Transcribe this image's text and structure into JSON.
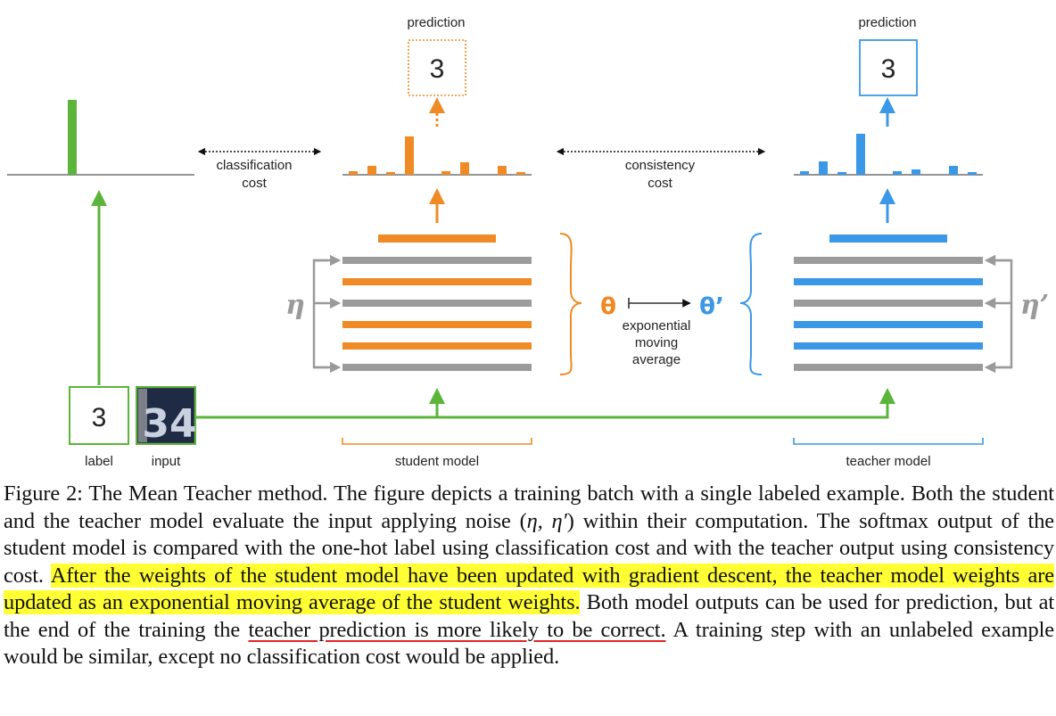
{
  "figure": {
    "prediction_label": "prediction",
    "student_prediction_digit": "3",
    "teacher_prediction_digit": "3",
    "classification_cost": [
      "classification",
      "cost"
    ],
    "consistency_cost": [
      "consistency",
      "cost"
    ],
    "label_digit": "3",
    "label_caption": "label",
    "input_caption": "input",
    "input_image_digits": "34",
    "student_model_label": "student model",
    "teacher_model_label": "teacher model",
    "eta": "η",
    "eta_prime": "η’",
    "theta": "θ",
    "theta_prime": "θ’",
    "ema_label": [
      "exponential",
      "moving",
      "average"
    ],
    "colors": {
      "student": "#f08a24",
      "teacher": "#3b98e6",
      "label": "#5bb53a",
      "noise": "#9a9a9a",
      "layer_gray": "#9b9b9b"
    }
  },
  "caption": {
    "prefix": "Figure 2: The Mean Teacher method. The figure depicts a training batch with a single labeled example. Both the student and the teacher model evaluate the input applying noise (",
    "math": "η, η′",
    "part2": ") within their computation. The softmax output of the student model is compared with the one-hot label using classification cost and with the teacher output using consistency cost. ",
    "highlight": "After the weights of the student model have been updated with gradient descent, the teacher model weights are updated as an exponential moving average of the student weights.",
    "part3": " Both model outputs can be used for prediction, but at the end of the training the ",
    "underlined": "teacher prediction is more likely to be correct.",
    "part4": " A training step with an unlabeled example would be similar, except no classification cost would be applied."
  }
}
